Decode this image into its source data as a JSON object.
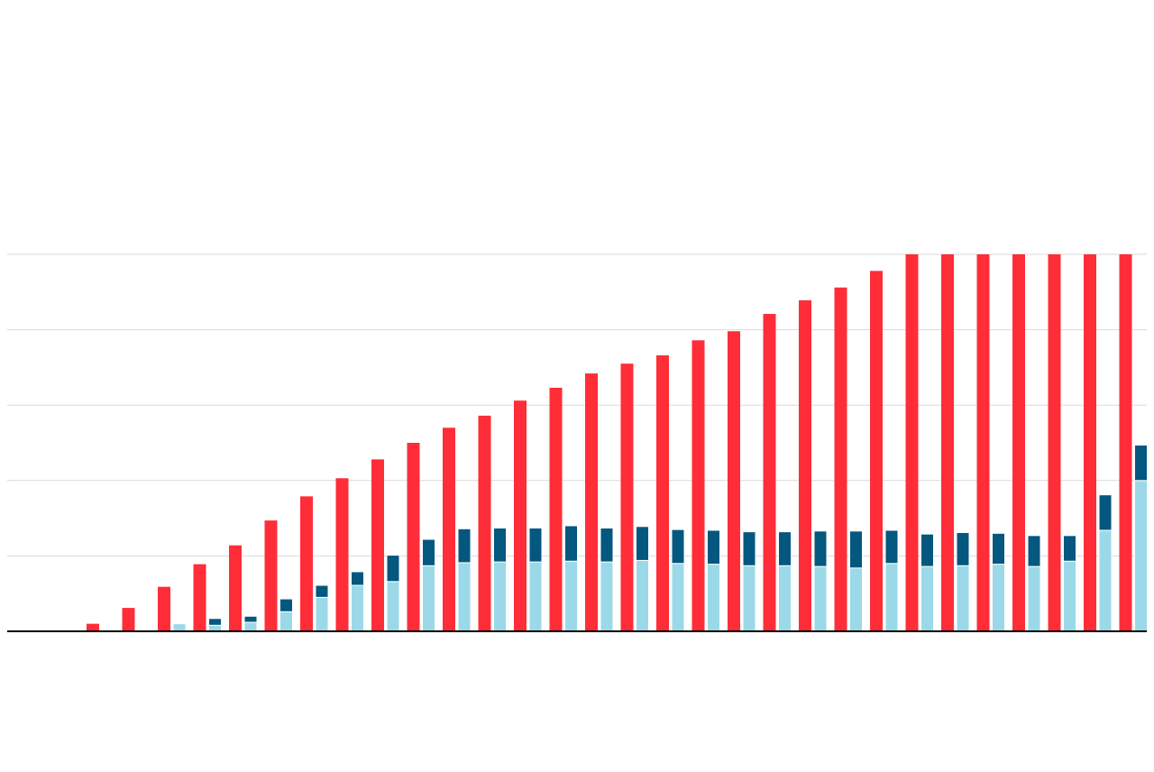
{
  "chart_data": {
    "type": "bar",
    "categories": [
      null,
      null,
      null,
      null,
      null,
      null,
      null,
      null,
      null,
      null,
      null,
      null,
      null,
      null,
      null,
      null,
      null,
      null,
      null,
      null,
      null,
      null,
      null,
      null,
      null,
      null,
      null,
      null,
      null,
      null,
      null,
      null
    ],
    "series": [
      {
        "color": "#ff2d37",
        "stack": "a",
        "values": [
          null,
          null,
          0.1,
          0.31,
          0.59,
          0.89,
          1.14,
          1.47,
          1.79,
          2.03,
          2.28,
          2.5,
          2.7,
          2.86,
          3.06,
          3.23,
          3.42,
          3.55,
          3.66,
          3.86,
          3.98,
          4.21,
          4.39,
          4.56,
          4.78,
          5,
          5,
          5,
          5,
          5,
          5,
          5
        ]
      },
      {
        "color": "#9bd9e8",
        "stack": "b",
        "values": [
          null,
          null,
          null,
          null,
          0.1,
          0.08,
          0.12,
          0.26,
          0.45,
          0.61,
          0.66,
          0.87,
          0.91,
          0.92,
          0.92,
          0.93,
          0.92,
          0.94,
          0.9,
          0.89,
          0.87,
          0.87,
          0.86,
          0.84,
          0.9,
          0.86,
          0.87,
          0.89,
          0.86,
          0.93,
          1.34,
          2.0
        ]
      },
      {
        "color": "#04577f",
        "stack": "b",
        "values": [
          null,
          null,
          null,
          null,
          null,
          0.09,
          0.08,
          0.17,
          0.16,
          0.18,
          0.35,
          0.35,
          0.45,
          0.45,
          0.45,
          0.47,
          0.45,
          0.45,
          0.45,
          0.45,
          0.45,
          0.45,
          0.47,
          0.49,
          0.44,
          0.43,
          0.44,
          0.41,
          0.41,
          0.34,
          0.47,
          0.47
        ]
      }
    ],
    "ylim": [
      0,
      5
    ],
    "yticks": [
      1,
      2,
      3,
      4,
      5
    ],
    "grid": true
  }
}
